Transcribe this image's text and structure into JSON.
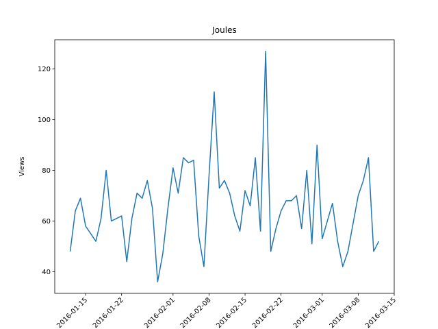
{
  "chart_data": {
    "type": "line",
    "title": "Joules",
    "y_label": "Views",
    "x": [
      "2016-01-12",
      "2016-01-13",
      "2016-01-14",
      "2016-01-15",
      "2016-01-16",
      "2016-01-17",
      "2016-01-18",
      "2016-01-19",
      "2016-01-20",
      "2016-01-21",
      "2016-01-22",
      "2016-01-23",
      "2016-01-24",
      "2016-01-25",
      "2016-01-26",
      "2016-01-27",
      "2016-01-28",
      "2016-01-29",
      "2016-01-30",
      "2016-01-31",
      "2016-02-01",
      "2016-02-02",
      "2016-02-03",
      "2016-02-04",
      "2016-02-05",
      "2016-02-06",
      "2016-02-07",
      "2016-02-08",
      "2016-02-09",
      "2016-02-10",
      "2016-02-11",
      "2016-02-12",
      "2016-02-13",
      "2016-02-14",
      "2016-02-15",
      "2016-02-16",
      "2016-02-17",
      "2016-02-18",
      "2016-02-19",
      "2016-02-20",
      "2016-02-21",
      "2016-02-22",
      "2016-02-23",
      "2016-02-24",
      "2016-02-25",
      "2016-02-26",
      "2016-02-27",
      "2016-02-28",
      "2016-02-29",
      "2016-03-01",
      "2016-03-02",
      "2016-03-03",
      "2016-03-04",
      "2016-03-05",
      "2016-03-06",
      "2016-03-07",
      "2016-03-08",
      "2016-03-09",
      "2016-03-10",
      "2016-03-11",
      "2016-03-12"
    ],
    "series": [
      {
        "name": "Views",
        "color": "#1f77b4",
        "values": [
          48,
          64,
          69,
          58,
          55,
          52,
          61,
          80,
          60,
          61,
          62,
          44,
          61,
          71,
          69,
          76,
          65,
          36,
          47,
          65,
          81,
          71,
          85,
          83,
          84,
          54,
          42,
          78,
          111,
          73,
          76,
          71,
          62,
          56,
          72,
          66,
          85,
          56,
          127,
          48,
          57,
          64,
          68,
          68,
          70,
          57,
          80,
          51,
          90,
          53,
          60,
          67,
          52,
          42,
          48,
          59,
          70,
          76,
          85,
          48,
          52
        ]
      }
    ],
    "xlim": [
      "2016-01-09",
      "2016-03-15"
    ],
    "xticks": [
      "2016-01-15",
      "2016-01-22",
      "2016-02-01",
      "2016-02-08",
      "2016-02-15",
      "2016-02-22",
      "2016-03-01",
      "2016-03-08",
      "2016-03-15"
    ],
    "ylim": [
      31.45,
      131.55
    ],
    "yticks": [
      40,
      60,
      80,
      100,
      120
    ]
  }
}
